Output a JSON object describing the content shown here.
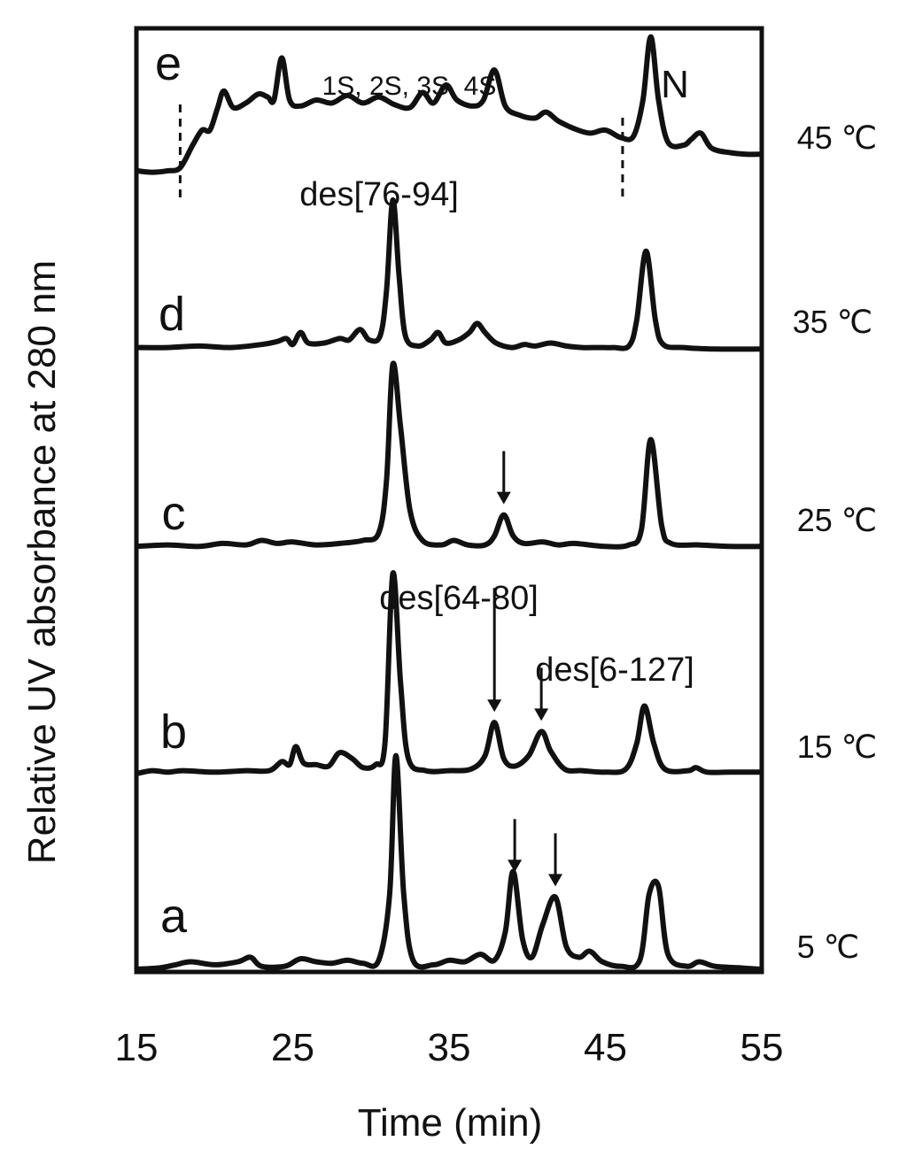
{
  "chart_data": {
    "type": "line",
    "title": "",
    "xlabel": "Time (min)",
    "ylabel": "Relative UV absorbance at 280 nm",
    "xlim": [
      15,
      55
    ],
    "xticks": [
      "15",
      "25",
      "35",
      "45",
      "55"
    ],
    "grid": false,
    "legend": "none",
    "line_color": "#111111",
    "series": [
      {
        "label": "e",
        "temperature": "45 ℃",
        "baseline_offset": 4.0,
        "points": [
          [
            15,
            0.03
          ],
          [
            16,
            0.02
          ],
          [
            17,
            0.03
          ],
          [
            17.8,
            0.05
          ],
          [
            18.6,
            0.2
          ],
          [
            19.2,
            0.3
          ],
          [
            19.7,
            0.3
          ],
          [
            20.2,
            0.45
          ],
          [
            20.6,
            0.56
          ],
          [
            21.2,
            0.45
          ],
          [
            22,
            0.48
          ],
          [
            22.8,
            0.54
          ],
          [
            23.4,
            0.52
          ],
          [
            23.8,
            0.5
          ],
          [
            24.3,
            0.78
          ],
          [
            24.8,
            0.5
          ],
          [
            25.5,
            0.46
          ],
          [
            26.5,
            0.5
          ],
          [
            27.5,
            0.48
          ],
          [
            28.5,
            0.53
          ],
          [
            29.5,
            0.48
          ],
          [
            30.5,
            0.52
          ],
          [
            31.5,
            0.47
          ],
          [
            32.5,
            0.45
          ],
          [
            33.3,
            0.55
          ],
          [
            34,
            0.48
          ],
          [
            34.8,
            0.6
          ],
          [
            35.5,
            0.5
          ],
          [
            36.5,
            0.46
          ],
          [
            37.2,
            0.5
          ],
          [
            37.9,
            0.7
          ],
          [
            38.6,
            0.46
          ],
          [
            39.5,
            0.4
          ],
          [
            40.5,
            0.38
          ],
          [
            41.2,
            0.42
          ],
          [
            42,
            0.36
          ],
          [
            43,
            0.31
          ],
          [
            44,
            0.28
          ],
          [
            45,
            0.3
          ],
          [
            46,
            0.25
          ],
          [
            46.8,
            0.26
          ],
          [
            47.4,
            0.5
          ],
          [
            47.9,
            0.92
          ],
          [
            48.4,
            0.5
          ],
          [
            49,
            0.22
          ],
          [
            50,
            0.2
          ],
          [
            50.5,
            0.24
          ],
          [
            51.1,
            0.28
          ],
          [
            51.8,
            0.18
          ],
          [
            53,
            0.15
          ],
          [
            54,
            0.14
          ],
          [
            55,
            0.14
          ]
        ]
      },
      {
        "label": "d",
        "temperature": "35 ℃",
        "baseline_offset": 3.0,
        "points": [
          [
            15,
            0.02
          ],
          [
            17,
            0.02
          ],
          [
            19,
            0.03
          ],
          [
            21,
            0.02
          ],
          [
            23,
            0.04
          ],
          [
            24,
            0.06
          ],
          [
            24.6,
            0.08
          ],
          [
            25,
            0.04
          ],
          [
            25.5,
            0.12
          ],
          [
            26,
            0.05
          ],
          [
            27,
            0.05
          ],
          [
            28,
            0.08
          ],
          [
            28.6,
            0.07
          ],
          [
            29.3,
            0.14
          ],
          [
            29.9,
            0.07
          ],
          [
            30.6,
            0.1
          ],
          [
            31,
            0.4
          ],
          [
            31.4,
            1.0
          ],
          [
            31.8,
            0.5
          ],
          [
            32.2,
            0.1
          ],
          [
            33,
            0.03
          ],
          [
            33.8,
            0.07
          ],
          [
            34.3,
            0.12
          ],
          [
            34.8,
            0.05
          ],
          [
            35.6,
            0.07
          ],
          [
            36.3,
            0.12
          ],
          [
            36.8,
            0.18
          ],
          [
            37.3,
            0.12
          ],
          [
            38,
            0.05
          ],
          [
            39,
            0.02
          ],
          [
            39.8,
            0.04
          ],
          [
            40.5,
            0.03
          ],
          [
            41.5,
            0.05
          ],
          [
            42.5,
            0.03
          ],
          [
            43.5,
            0.02
          ],
          [
            44.5,
            0.02
          ],
          [
            45.5,
            0.02
          ],
          [
            46.5,
            0.03
          ],
          [
            47,
            0.2
          ],
          [
            47.6,
            0.66
          ],
          [
            48.2,
            0.2
          ],
          [
            48.7,
            0.04
          ],
          [
            50,
            0.02
          ],
          [
            52,
            0.01
          ],
          [
            55,
            0.01
          ]
        ]
      },
      {
        "label": "c",
        "temperature": "25 ℃",
        "baseline_offset": 2.0,
        "points": [
          [
            15,
            0.01
          ],
          [
            17,
            0.02
          ],
          [
            19,
            0.01
          ],
          [
            20.5,
            0.03
          ],
          [
            22,
            0.02
          ],
          [
            23,
            0.05
          ],
          [
            24,
            0.03
          ],
          [
            25,
            0.04
          ],
          [
            26.5,
            0.02
          ],
          [
            28,
            0.03
          ],
          [
            29.5,
            0.05
          ],
          [
            30.5,
            0.1
          ],
          [
            31,
            0.45
          ],
          [
            31.4,
            1.22
          ],
          [
            31.9,
            0.8
          ],
          [
            32.5,
            0.25
          ],
          [
            33.3,
            0.05
          ],
          [
            34.5,
            0.02
          ],
          [
            35.3,
            0.05
          ],
          [
            36.2,
            0.02
          ],
          [
            37.3,
            0.02
          ],
          [
            37.9,
            0.08
          ],
          [
            38.5,
            0.22
          ],
          [
            39.1,
            0.08
          ],
          [
            39.8,
            0.03
          ],
          [
            41,
            0.04
          ],
          [
            42,
            0.02
          ],
          [
            43,
            0.03
          ],
          [
            45,
            0.01
          ],
          [
            46.5,
            0.02
          ],
          [
            47.3,
            0.12
          ],
          [
            47.9,
            0.72
          ],
          [
            48.6,
            0.15
          ],
          [
            49.2,
            0.03
          ],
          [
            51,
            0.02
          ],
          [
            53,
            0.01
          ],
          [
            55,
            0.01
          ]
        ]
      },
      {
        "label": "b",
        "temperature": "15 ℃",
        "baseline_offset": 1.0,
        "points": [
          [
            15,
            0.0
          ],
          [
            16,
            0.02
          ],
          [
            17,
            0.01
          ],
          [
            18,
            0.02
          ],
          [
            20,
            0.01
          ],
          [
            22,
            0.02
          ],
          [
            23.5,
            0.02
          ],
          [
            24.3,
            0.08
          ],
          [
            24.8,
            0.06
          ],
          [
            25.2,
            0.18
          ],
          [
            25.7,
            0.07
          ],
          [
            26.5,
            0.06
          ],
          [
            27.3,
            0.05
          ],
          [
            28,
            0.14
          ],
          [
            28.8,
            0.1
          ],
          [
            29.5,
            0.04
          ],
          [
            30.3,
            0.06
          ],
          [
            30.9,
            0.2
          ],
          [
            31.4,
            1.33
          ],
          [
            31.9,
            0.6
          ],
          [
            32.4,
            0.1
          ],
          [
            33.5,
            0.02
          ],
          [
            35,
            0.02
          ],
          [
            36.4,
            0.03
          ],
          [
            37.3,
            0.12
          ],
          [
            37.9,
            0.34
          ],
          [
            38.5,
            0.1
          ],
          [
            39.2,
            0.05
          ],
          [
            40.1,
            0.12
          ],
          [
            40.9,
            0.28
          ],
          [
            41.5,
            0.15
          ],
          [
            42.4,
            0.03
          ],
          [
            43.5,
            0.02
          ],
          [
            45,
            0.01
          ],
          [
            46.3,
            0.03
          ],
          [
            47,
            0.2
          ],
          [
            47.5,
            0.45
          ],
          [
            48.1,
            0.2
          ],
          [
            48.8,
            0.03
          ],
          [
            50.3,
            0.02
          ],
          [
            50.8,
            0.04
          ],
          [
            51.5,
            0.01
          ],
          [
            53,
            0.01
          ],
          [
            55,
            0.01
          ]
        ]
      },
      {
        "label": "a",
        "temperature": "5 ℃",
        "baseline_offset": 0.0,
        "points": [
          [
            15,
            0.0
          ],
          [
            16.5,
            0.01
          ],
          [
            17.5,
            0.03
          ],
          [
            18.5,
            0.05
          ],
          [
            20,
            0.03
          ],
          [
            21.5,
            0.05
          ],
          [
            22.3,
            0.08
          ],
          [
            23,
            0.02
          ],
          [
            24.5,
            0.02
          ],
          [
            25.5,
            0.07
          ],
          [
            26.5,
            0.05
          ],
          [
            27.5,
            0.04
          ],
          [
            28.5,
            0.06
          ],
          [
            29.5,
            0.04
          ],
          [
            30.5,
            0.06
          ],
          [
            31.2,
            0.5
          ],
          [
            31.6,
            1.42
          ],
          [
            32.1,
            0.5
          ],
          [
            32.7,
            0.06
          ],
          [
            34,
            0.03
          ],
          [
            35,
            0.06
          ],
          [
            36,
            0.05
          ],
          [
            37,
            0.1
          ],
          [
            37.9,
            0.06
          ],
          [
            38.6,
            0.25
          ],
          [
            39.1,
            0.65
          ],
          [
            39.7,
            0.2
          ],
          [
            40.3,
            0.08
          ],
          [
            41,
            0.3
          ],
          [
            41.8,
            0.48
          ],
          [
            42.5,
            0.15
          ],
          [
            43.3,
            0.08
          ],
          [
            44,
            0.12
          ],
          [
            44.8,
            0.05
          ],
          [
            46,
            0.02
          ],
          [
            47.2,
            0.06
          ],
          [
            47.8,
            0.5
          ],
          [
            48.4,
            0.55
          ],
          [
            49,
            0.1
          ],
          [
            50.2,
            0.02
          ],
          [
            51,
            0.05
          ],
          [
            52,
            0.02
          ],
          [
            53.5,
            0.01
          ],
          [
            55,
            0.0
          ]
        ]
      }
    ],
    "annotations": [
      {
        "text": "1S, 2S, 3S, 4S",
        "series": "e"
      },
      {
        "text": "N",
        "series": "e"
      },
      {
        "text": "des[76-94]",
        "series": "d"
      },
      {
        "text": "des[64-80]",
        "series": "b"
      },
      {
        "text": "des[6-127]",
        "series": "b"
      }
    ],
    "arrows": [
      {
        "series": "c",
        "x": 38.5
      },
      {
        "series": "b",
        "x": 37.9,
        "long": true
      },
      {
        "series": "b",
        "x": 40.9
      },
      {
        "series": "a",
        "x": 39.2
      },
      {
        "series": "a",
        "x": 41.8
      }
    ],
    "dashed_markers": [
      {
        "series": "e",
        "x": 17.8
      },
      {
        "series": "e",
        "x": 46.1
      }
    ]
  }
}
